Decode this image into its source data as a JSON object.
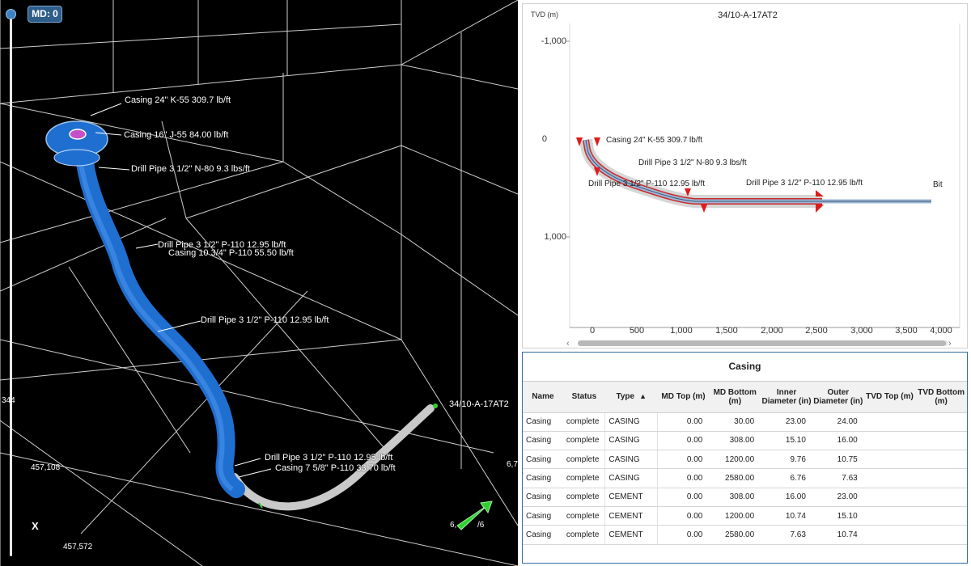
{
  "viewer": {
    "md_badge": "MD: 0",
    "well_name": "34/10-A-17AT2",
    "labels": [
      "Casing 24\" K-55 309.7 lb/ft",
      "Casing 16\" J-55 84.00 lb/ft",
      "Drill Pipe 3 1/2\" N-80 9.3 lbs/ft",
      "Drill Pipe 3 1/2\" P-110 12.95 lb/ft",
      "Casing 10 3/4\" P-110 55.50 lb/ft",
      "Drill Pipe 3 1/2\" P-110 12.95 lb/ft",
      "Drill Pipe 3 1/2\" P-110 12.95 lb/ft",
      "Casing 7 5/8\" P-110 33.70 lb/ft"
    ],
    "coords": {
      "left_mid": "344",
      "x1": "457,108",
      "x2": "457,572",
      "axis_x": "X",
      "right_edge": "6,7",
      "arrow_label_a": "6,",
      "arrow_label_b": "/6"
    }
  },
  "chart2d": {
    "title": "34/10-A-17AT2",
    "y_axis_label": "TVD (m)",
    "y_ticks": [
      "-1,000",
      "0",
      "1,000"
    ],
    "x_ticks": [
      "0",
      "500",
      "1,000",
      "1,500",
      "2,000",
      "2,500",
      "3,000",
      "3,500",
      "4,000"
    ],
    "labels": {
      "casing24": "Casing 24\" K-55 309.7 lb/ft",
      "dp_n80": "Drill Pipe 3 1/2\" N-80 9.3 lbs/ft",
      "dp_p110_a": "Drill Pipe 3 1/2\" P-110 12.95 lb/ft",
      "dp_p110_b": "Drill Pipe 3 1/2\" P-110 12.95 lb/ft",
      "bit": "Bit"
    },
    "scroll_left": "‹",
    "scroll_right": "›"
  },
  "casing": {
    "title": "Casing",
    "columns": [
      "Name",
      "Status",
      "Type",
      "MD Top (m)",
      "MD Bottom (m)",
      "Inner Diameter (in)",
      "Outer Diameter (in)",
      "TVD Top (m)",
      "TVD Bottom (m)"
    ],
    "sort_indicator": "▲",
    "rows": [
      {
        "name": "Casing",
        "status": "complete",
        "type": "CASING",
        "md_top": "0.00",
        "md_bottom": "30.00",
        "inner": "23.00",
        "outer": "24.00",
        "tvd_top": "",
        "tvd_bottom": ""
      },
      {
        "name": "Casing",
        "status": "complete",
        "type": "CASING",
        "md_top": "0.00",
        "md_bottom": "308.00",
        "inner": "15.10",
        "outer": "16.00",
        "tvd_top": "",
        "tvd_bottom": ""
      },
      {
        "name": "Casing",
        "status": "complete",
        "type": "CASING",
        "md_top": "0.00",
        "md_bottom": "1200.00",
        "inner": "9.76",
        "outer": "10.75",
        "tvd_top": "",
        "tvd_bottom": ""
      },
      {
        "name": "Casing",
        "status": "complete",
        "type": "CASING",
        "md_top": "0.00",
        "md_bottom": "2580.00",
        "inner": "6.76",
        "outer": "7.63",
        "tvd_top": "",
        "tvd_bottom": ""
      },
      {
        "name": "Casing",
        "status": "complete",
        "type": "CEMENT",
        "md_top": "0.00",
        "md_bottom": "308.00",
        "inner": "16.00",
        "outer": "23.00",
        "tvd_top": "",
        "tvd_bottom": ""
      },
      {
        "name": "Casing",
        "status": "complete",
        "type": "CEMENT",
        "md_top": "0.00",
        "md_bottom": "1200.00",
        "inner": "10.74",
        "outer": "15.10",
        "tvd_top": "",
        "tvd_bottom": ""
      },
      {
        "name": "Casing",
        "status": "complete",
        "type": "CEMENT",
        "md_top": "0.00",
        "md_bottom": "2580.00",
        "inner": "7.63",
        "outer": "10.74",
        "tvd_top": "",
        "tvd_bottom": ""
      }
    ]
  },
  "colors": {
    "tube_blue": "#1f6fd1",
    "tube_gray": "#c9c9c9",
    "cement_red": "#cc2a2a",
    "accent": "#2e6ea6"
  }
}
